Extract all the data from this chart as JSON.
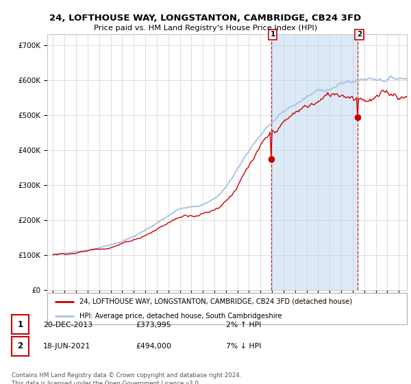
{
  "title": "24, LOFTHOUSE WAY, LONGSTANTON, CAMBRIDGE, CB24 3FD",
  "subtitle": "Price paid vs. HM Land Registry's House Price Index (HPI)",
  "ylabel_ticks": [
    "£0",
    "£100K",
    "£200K",
    "£300K",
    "£400K",
    "£500K",
    "£600K",
    "£700K"
  ],
  "ytick_values": [
    0,
    100000,
    200000,
    300000,
    400000,
    500000,
    600000,
    700000
  ],
  "ylim": [
    0,
    730000
  ],
  "hpi_color": "#aac4e0",
  "price_color": "#cc0000",
  "marker1_date_year": 2013,
  "marker1_date_month": 12,
  "marker1_price": 373995,
  "marker2_date_year": 2021,
  "marker2_date_month": 6,
  "marker2_price": 494000,
  "legend_label1": "24, LOFTHOUSE WAY, LONGSTANTON, CAMBRIDGE, CB24 3FD (detached house)",
  "legend_label2": "HPI: Average price, detached house, South Cambridgeshire",
  "table_row1": [
    "1",
    "20-DEC-2013",
    "£373,995",
    "2% ↑ HPI"
  ],
  "table_row2": [
    "2",
    "18-JUN-2021",
    "£494,000",
    "7% ↓ HPI"
  ],
  "footer": "Contains HM Land Registry data © Crown copyright and database right 2024.\nThis data is licensed under the Open Government Licence v3.0.",
  "bg_color": "#ffffff",
  "grid_color": "#d0d0d0",
  "vline_color": "#cc0000",
  "highlight_color": "#dceaf7"
}
